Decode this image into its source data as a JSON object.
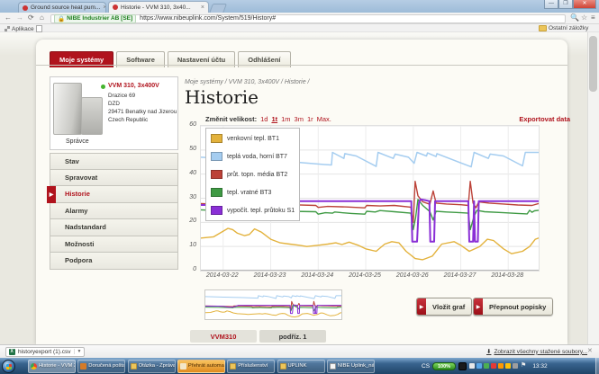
{
  "browser": {
    "tabs": [
      {
        "title": "Ground source heat pum..."
      },
      {
        "title": "Historie - VVM 310, 3x40..."
      }
    ],
    "security_badge": "NIBE Industrier AB [SE]",
    "url": "https://www.nibeuplink.com/System/519/History#",
    "bookmarks_left": "Aplikace",
    "bookmarks_right": "Ostatní záložky"
  },
  "nav": {
    "items": [
      {
        "label": "Moje systémy",
        "active": true
      },
      {
        "label": "Software",
        "active": false
      },
      {
        "label": "Nastavení účtu",
        "active": false
      },
      {
        "label": "Odhlášení",
        "active": false
      }
    ]
  },
  "sidebar": {
    "device": {
      "name": "VVM 310, 3x400V",
      "address_lines": [
        "Drazice 69",
        "DZD",
        "29471 Benatky nad Jizerou",
        "Czech Republic"
      ],
      "role": "Správce"
    },
    "menu": [
      {
        "label": "Stav",
        "active": false
      },
      {
        "label": "Spravovat",
        "active": false
      },
      {
        "label": "Historie",
        "active": true
      },
      {
        "label": "Alarmy",
        "active": false
      },
      {
        "label": "Nadstandard",
        "active": false
      },
      {
        "label": "Možnosti",
        "active": false
      },
      {
        "label": "Podpora",
        "active": false
      }
    ]
  },
  "main": {
    "breadcrumb": "Moje systémy / VVM 310, 3x400V / Historie /",
    "title": "Historie",
    "resize_label": "Změnit velikost:",
    "resize_options": [
      {
        "label": "1d",
        "active": false
      },
      {
        "label": "1t",
        "active": true
      },
      {
        "label": "1m",
        "active": false
      },
      {
        "label": "3m",
        "active": false
      },
      {
        "label": "1r",
        "active": false
      },
      {
        "label": "Max.",
        "active": false
      }
    ],
    "export_link": "Exportovat data",
    "insert_graph_button": "Vložit graf",
    "toggle_labels_button": "Přepnout popisky",
    "bottom_tabs": [
      {
        "label": "VVM310",
        "active": true
      },
      {
        "label": "podříz. 1",
        "active": false
      }
    ]
  },
  "chart_data": {
    "type": "line",
    "title": "",
    "xlabel": "",
    "ylabel": "",
    "ylim": [
      0,
      60
    ],
    "x_domain": [
      -0.47,
      6.64
    ],
    "y_ticks": [
      0,
      10,
      20,
      30,
      40,
      50,
      60
    ],
    "x_ticks": [
      {
        "t": 0,
        "label": "2014-03-22"
      },
      {
        "t": 1,
        "label": "2014-03-23"
      },
      {
        "t": 2,
        "label": "2014-03-24"
      },
      {
        "t": 3,
        "label": "2014-03-25"
      },
      {
        "t": 4,
        "label": "2014-03-26"
      },
      {
        "t": 5,
        "label": "2014-03-27"
      },
      {
        "t": 6,
        "label": "2014-03-28"
      }
    ],
    "grid": true,
    "legend_position": "top-left",
    "series": [
      {
        "name": "venkovní tepl. BT1",
        "color": "#e3b23c",
        "width": 1.4,
        "points": [
          [
            -0.47,
            13.5
          ],
          [
            -0.2,
            14
          ],
          [
            0.1,
            17.5
          ],
          [
            0.2,
            17
          ],
          [
            0.3,
            15.5
          ],
          [
            0.45,
            14.5
          ],
          [
            0.55,
            15
          ],
          [
            0.66,
            17.3
          ],
          [
            0.8,
            16
          ],
          [
            1.0,
            13
          ],
          [
            1.2,
            11.5
          ],
          [
            1.4,
            11
          ],
          [
            1.6,
            10.5
          ],
          [
            1.76,
            10
          ],
          [
            2.0,
            10.5
          ],
          [
            2.2,
            11
          ],
          [
            2.37,
            11.5
          ],
          [
            2.5,
            10.8
          ],
          [
            2.65,
            11.8
          ],
          [
            2.84,
            10.5
          ],
          [
            3.0,
            9
          ],
          [
            3.22,
            8
          ],
          [
            3.4,
            11
          ],
          [
            3.55,
            12
          ],
          [
            3.7,
            11.5
          ],
          [
            3.85,
            8
          ],
          [
            4.04,
            5
          ],
          [
            4.2,
            4.5
          ],
          [
            4.4,
            6
          ],
          [
            4.6,
            11
          ],
          [
            4.86,
            12
          ],
          [
            5.0,
            10.5
          ],
          [
            5.18,
            8
          ],
          [
            5.4,
            10
          ],
          [
            5.56,
            13
          ],
          [
            5.69,
            12.5
          ],
          [
            5.9,
            9
          ],
          [
            6.07,
            7
          ],
          [
            6.3,
            8
          ],
          [
            6.45,
            10
          ],
          [
            6.57,
            13
          ],
          [
            6.64,
            13.5
          ]
        ]
      },
      {
        "name": "teplá voda, horní BT7",
        "color": "#a5cdf0",
        "width": 1.5,
        "points": [
          [
            -0.47,
            47
          ],
          [
            0.5,
            46
          ],
          [
            1.5,
            45
          ],
          [
            2.1,
            44
          ],
          [
            2.28,
            43.8
          ],
          [
            2.3,
            49
          ],
          [
            2.54,
            46.5
          ],
          [
            2.56,
            48.5
          ],
          [
            2.8,
            47.5
          ],
          [
            3.22,
            43.2
          ],
          [
            3.26,
            49
          ],
          [
            3.58,
            46.5
          ],
          [
            3.62,
            48.3
          ],
          [
            3.9,
            47
          ],
          [
            4.02,
            44.5
          ],
          [
            4.08,
            49
          ],
          [
            4.28,
            47.5
          ],
          [
            4.3,
            48.8
          ],
          [
            4.48,
            47.3
          ],
          [
            4.5,
            48.5
          ],
          [
            5.22,
            43
          ],
          [
            5.28,
            49
          ],
          [
            5.58,
            46.5
          ],
          [
            5.62,
            48.3
          ],
          [
            5.9,
            47.5
          ],
          [
            6.3,
            43.4
          ],
          [
            6.36,
            49
          ],
          [
            6.64,
            49
          ]
        ]
      },
      {
        "name": "průt. topn. média BT2",
        "color": "#bc4238",
        "width": 1.4,
        "points": [
          [
            -0.47,
            27.8
          ],
          [
            0.2,
            27.2
          ],
          [
            0.6,
            26.8
          ],
          [
            0.98,
            26.3
          ],
          [
            1.02,
            27.6
          ],
          [
            1.4,
            27.3
          ],
          [
            1.95,
            27
          ],
          [
            2.0,
            26.2
          ],
          [
            2.2,
            26.6
          ],
          [
            2.6,
            26.4
          ],
          [
            2.98,
            26
          ],
          [
            3.02,
            27
          ],
          [
            3.3,
            26.8
          ],
          [
            3.6,
            27
          ],
          [
            3.95,
            26.3
          ],
          [
            4.0,
            20
          ],
          [
            4.04,
            37
          ],
          [
            4.1,
            31
          ],
          [
            4.2,
            28.5
          ],
          [
            4.35,
            27.5
          ],
          [
            4.42,
            33
          ],
          [
            4.48,
            28
          ],
          [
            4.7,
            27.6
          ],
          [
            5.0,
            27.3
          ],
          [
            5.16,
            27
          ],
          [
            5.2,
            37
          ],
          [
            5.26,
            28
          ],
          [
            5.32,
            26
          ],
          [
            5.38,
            28.5
          ],
          [
            5.6,
            28
          ],
          [
            5.9,
            27.6
          ],
          [
            6.2,
            27.2
          ],
          [
            6.5,
            27
          ],
          [
            6.64,
            27.8
          ]
        ]
      },
      {
        "name": "tepl. vratné BT3",
        "color": "#3f9a44",
        "width": 1.4,
        "points": [
          [
            -0.47,
            25.2
          ],
          [
            0.3,
            24.6
          ],
          [
            0.7,
            24.2
          ],
          [
            0.98,
            23.6
          ],
          [
            1.02,
            25
          ],
          [
            1.4,
            24.6
          ],
          [
            1.95,
            24.4
          ],
          [
            2.0,
            23.4
          ],
          [
            2.15,
            24
          ],
          [
            2.3,
            23.8
          ],
          [
            2.35,
            24.3
          ],
          [
            2.5,
            24
          ],
          [
            2.7,
            23.7
          ],
          [
            2.98,
            23.4
          ],
          [
            3.02,
            24.6
          ],
          [
            3.2,
            24.3
          ],
          [
            3.3,
            24.9
          ],
          [
            3.6,
            24.4
          ],
          [
            3.95,
            23.8
          ],
          [
            4.0,
            17
          ],
          [
            4.05,
            22
          ],
          [
            4.1,
            29.5
          ],
          [
            4.2,
            27
          ],
          [
            4.35,
            24.5
          ],
          [
            4.42,
            21
          ],
          [
            4.48,
            24.6
          ],
          [
            4.7,
            24.3
          ],
          [
            5.0,
            24
          ],
          [
            5.16,
            23.8
          ],
          [
            5.2,
            17
          ],
          [
            5.28,
            22.5
          ],
          [
            5.34,
            25
          ],
          [
            5.5,
            24.4
          ],
          [
            5.9,
            24
          ],
          [
            6.2,
            23.7
          ],
          [
            6.4,
            23.5
          ],
          [
            6.45,
            25
          ],
          [
            6.5,
            24.2
          ],
          [
            6.55,
            24.8
          ],
          [
            6.64,
            25
          ]
        ]
      },
      {
        "name": "vypočít. tepl. průtoku S1",
        "color": "#8a2fd6",
        "width": 2,
        "points": [
          [
            -0.47,
            27.2
          ],
          [
            0.2,
            27.2
          ],
          [
            0.5,
            26.8
          ],
          [
            0.7,
            25.2
          ],
          [
            0.95,
            25.2
          ],
          [
            1.1,
            26.5
          ],
          [
            1.25,
            28.8
          ],
          [
            3.96,
            28.8
          ],
          [
            3.98,
            12
          ],
          [
            4.08,
            12
          ],
          [
            4.12,
            28
          ],
          [
            4.15,
            29.5
          ],
          [
            4.25,
            29.2
          ],
          [
            4.34,
            28.8
          ],
          [
            4.36,
            12
          ],
          [
            4.44,
            12
          ],
          [
            4.46,
            28.8
          ],
          [
            5.16,
            28.8
          ],
          [
            5.18,
            12
          ],
          [
            5.26,
            12
          ],
          [
            5.28,
            28.8
          ],
          [
            5.3,
            12
          ],
          [
            5.36,
            12
          ],
          [
            5.38,
            28.8
          ],
          [
            6.64,
            28.8
          ]
        ]
      }
    ]
  },
  "download_bar": {
    "file": "historyexport (1).csv",
    "show_all": "Zobrazit všechny stažené soubory..."
  },
  "taskbar": {
    "buttons": [
      {
        "label": "Historie - VVM 3...",
        "icon": "chrome",
        "state": "active"
      },
      {
        "label": "Doručená pošta -...",
        "icon": "outlook",
        "state": ""
      },
      {
        "label": "Otázka - Zpráva (...",
        "icon": "folder",
        "state": ""
      },
      {
        "label": "Přehrát automati...",
        "icon": "media",
        "state": "alert"
      },
      {
        "label": "Příslušenství",
        "icon": "folder",
        "state": ""
      },
      {
        "label": "UPLINK",
        "icon": "folder",
        "state": ""
      },
      {
        "label": "NIBE Uplink_nájt...",
        "icon": "doc",
        "state": ""
      }
    ],
    "tray": {
      "lang": "CS",
      "battery": "100%",
      "icon_colors": [
        "#e8e8e8",
        "#58a6e8",
        "#4caf50",
        "#e53935",
        "#ff9800",
        "#ffc107",
        "#9e9e9e"
      ],
      "clock": "13:32"
    }
  },
  "colors": {
    "brand_red": "#b0131d",
    "taskbar_blue": "#39648f",
    "page_bg": "#e9e8e0"
  }
}
